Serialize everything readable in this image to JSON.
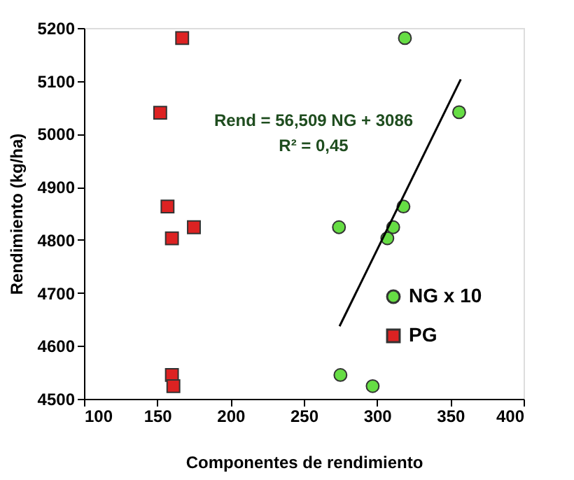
{
  "chart_data": {
    "type": "scatter",
    "xlabel": "Componentes de rendimiento",
    "ylabel": "Rendimiento (kg/ha)",
    "xlim": [
      100,
      400
    ],
    "xticks": [
      100,
      150,
      200,
      250,
      300,
      350,
      400
    ],
    "ylim": [
      4500,
      5200
    ],
    "yticks": [
      4500,
      4600,
      4700,
      4800,
      4900,
      5000,
      5100,
      5200
    ],
    "grid": false,
    "legend": "bottom right",
    "annotations": [
      "Rend = 56,509 NG + 3086",
      "R² = 0,45"
    ],
    "series": [
      {
        "name": "NG x 10",
        "color": "#66dd44",
        "marker": "circle",
        "x": [
          319,
          356,
          318,
          274,
          311,
          307,
          275,
          297
        ],
        "values": [
          5181,
          5041,
          4863,
          4824,
          4824,
          4803,
          4545,
          4524
        ]
      },
      {
        "name": "PG",
        "color": "#dd2222",
        "marker": "square",
        "x": [
          167,
          152,
          157,
          175,
          160,
          160,
          161
        ],
        "values": [
          5181,
          5040,
          4863,
          4824,
          4803,
          4545,
          4524
        ]
      },
      {
        "type": "line",
        "color": "#000000",
        "marker": "none",
        "line_style": "solid",
        "x": [
          274.4,
          357.1
        ],
        "values": [
          4637,
          5103
        ]
      }
    ]
  }
}
